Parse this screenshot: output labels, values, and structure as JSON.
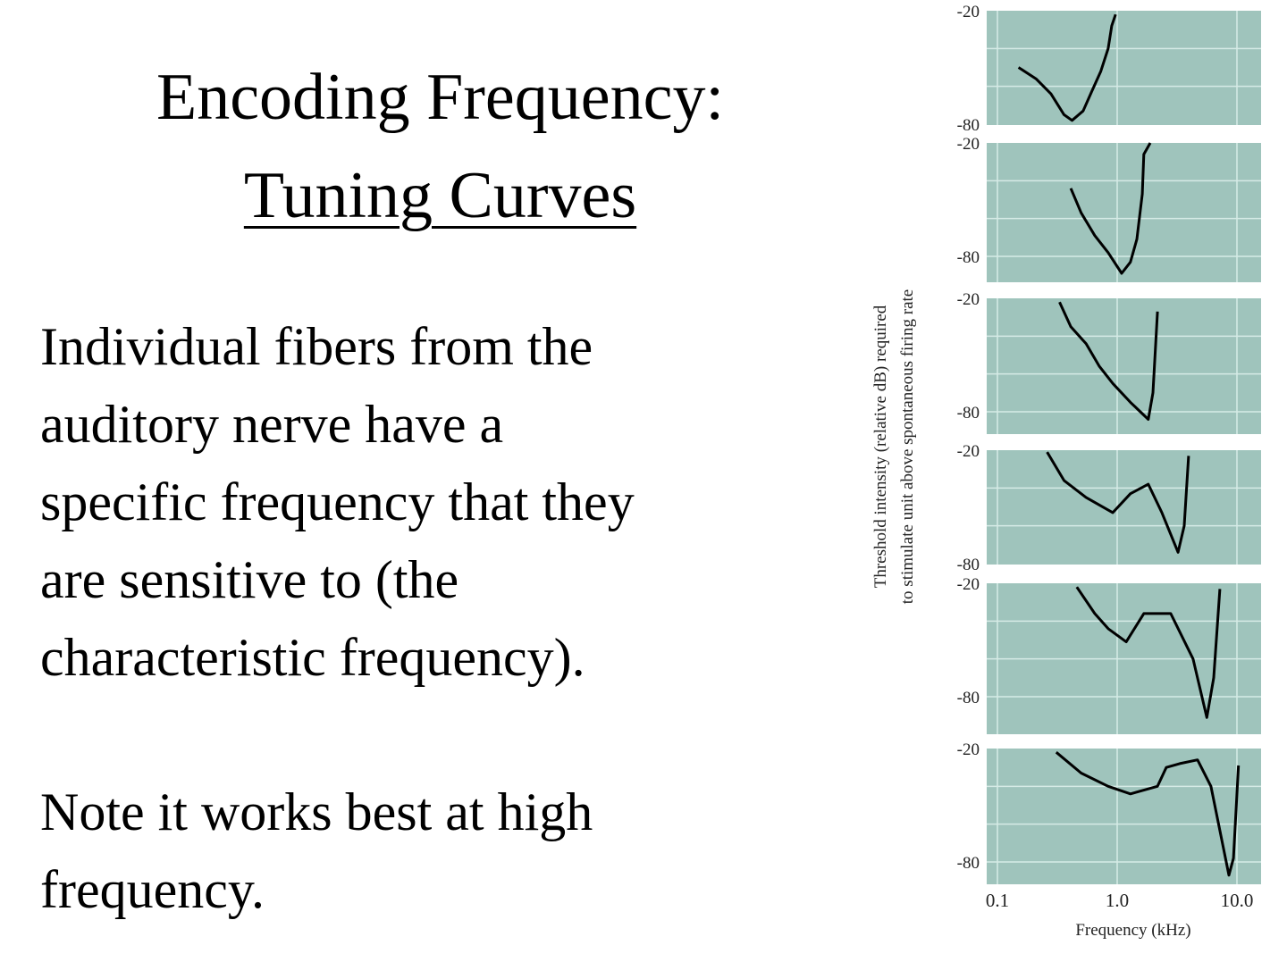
{
  "slide": {
    "title_line1": "Encoding Frequency:",
    "title_line2": "Tuning Curves",
    "paragraph1": [
      "Individual fibers from the",
      "auditory nerve have a",
      "specific frequency that they",
      "are sensitive to (the",
      "characteristic frequency)."
    ],
    "paragraph2": [
      "Note it works best at high",
      "frequency."
    ]
  },
  "chart_data": {
    "type": "line",
    "layout": "6 vertically stacked panels sharing x axis",
    "xlabel": "Frequency (kHz)",
    "ylabel_line1": "Threshold intensity (relative dB) required",
    "ylabel_line2": "to stimulate unit above spontaneous firing rate",
    "x_scale": "log",
    "x_ticks": [
      "0.1",
      "1.0",
      "10.0"
    ],
    "x_tick_values": [
      0.1,
      1.0,
      10.0
    ],
    "y_ticks": [
      "-20",
      "-80"
    ],
    "y_tick_values": [
      -20,
      -80
    ],
    "grid": true,
    "panel_color": "#9fc4bc",
    "line_color": "#000000",
    "panels": [
      {
        "x": [
          0.15,
          0.21,
          0.28,
          0.36,
          0.42,
          0.52,
          0.62,
          0.73,
          0.84,
          0.9,
          0.97
        ],
        "y": [
          -50,
          -56,
          -64,
          -75,
          -78,
          -73,
          -62,
          -52,
          -40,
          -28,
          -22
        ]
      },
      {
        "x": [
          0.41,
          0.5,
          0.65,
          0.84,
          1.09,
          1.29,
          1.46,
          1.62,
          1.67,
          1.89
        ],
        "y": [
          -44,
          -57,
          -69,
          -78,
          -89,
          -83,
          -71,
          -47,
          -26,
          -20
        ]
      },
      {
        "x": [
          0.33,
          0.41,
          0.55,
          0.71,
          0.92,
          1.29,
          1.82,
          1.99,
          2.17
        ],
        "y": [
          -22,
          -35,
          -44,
          -56,
          -65,
          -75,
          -84,
          -70,
          -27
        ]
      },
      {
        "x": [
          0.26,
          0.36,
          0.55,
          0.92,
          1.29,
          1.82,
          2.36,
          3.22,
          3.63,
          3.95
        ],
        "y": [
          -21,
          -36,
          -45,
          -53,
          -43,
          -38,
          -53,
          -74,
          -60,
          -23
        ]
      },
      {
        "x": [
          0.46,
          0.65,
          0.84,
          1.19,
          1.67,
          2.8,
          4.3,
          5.6,
          6.4,
          7.2
        ],
        "y": [
          -22,
          -36,
          -44,
          -51,
          -36,
          -36,
          -60,
          -91,
          -70,
          -23
        ]
      },
      {
        "x": [
          0.31,
          0.5,
          0.84,
          1.29,
          2.17,
          2.57,
          3.33,
          4.69,
          6.07,
          8.57,
          9.35,
          10.3
        ],
        "y": [
          -22,
          -33,
          -40,
          -44,
          -40,
          -30,
          -28,
          -26,
          -40,
          -87,
          -78,
          -29
        ]
      }
    ]
  }
}
